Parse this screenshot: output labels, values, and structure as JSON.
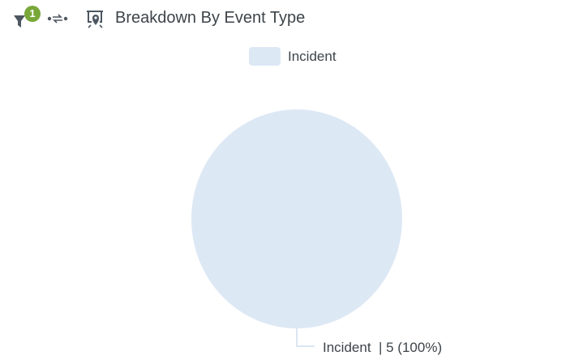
{
  "header": {
    "filter_count": "1",
    "title": "Breakdown By Event Type"
  },
  "icons": {
    "filter": "filter-icon",
    "drill": "drill-through-icon",
    "present": "presentation-pin-icon"
  },
  "colors": {
    "incident": "#dde8f5",
    "badge": "#79a83a",
    "icon": "#4d5761",
    "leader_line": "#c8d8ec"
  },
  "chart_data": {
    "type": "pie",
    "title": "Breakdown By Event Type",
    "legend_position": "top",
    "slices": [
      {
        "label": "Incident",
        "value": 5,
        "percent": 100,
        "data_label": "Incident  | 5 (100%)"
      }
    ]
  }
}
